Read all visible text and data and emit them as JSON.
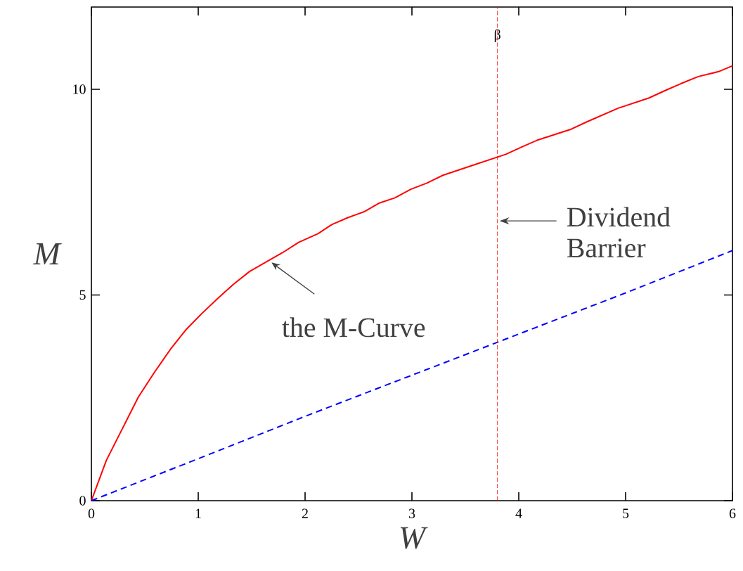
{
  "chart_data": {
    "type": "line",
    "xlabel": "W",
    "ylabel": "M",
    "xlim": [
      0,
      6
    ],
    "ylim": [
      0,
      12
    ],
    "xticks": [
      0,
      1,
      2,
      3,
      4,
      5,
      6
    ],
    "yticks": [
      0,
      5,
      10
    ],
    "series": [
      {
        "color": "#ff0000",
        "line_style": "solid",
        "x": [
          0,
          0.14,
          0.29,
          0.44,
          0.59,
          0.74,
          0.88,
          1.03,
          1.18,
          1.33,
          1.48,
          1.66,
          1.79,
          1.94,
          2.12,
          2.25,
          2.4,
          2.55,
          2.69,
          2.84,
          2.99,
          3.14,
          3.29,
          3.59,
          3.88,
          4.03,
          4.18,
          4.48,
          4.63,
          4.78,
          4.93,
          5.22,
          5.37,
          5.52,
          5.68,
          5.87,
          6
        ],
        "values": [
          0,
          0.98,
          1.75,
          2.52,
          3.12,
          3.68,
          4.14,
          4.54,
          4.91,
          5.26,
          5.57,
          5.84,
          6.03,
          6.28,
          6.49,
          6.71,
          6.88,
          7.02,
          7.23,
          7.36,
          7.57,
          7.72,
          7.91,
          8.17,
          8.42,
          8.6,
          8.77,
          9.02,
          9.2,
          9.37,
          9.54,
          9.79,
          9.97,
          10.14,
          10.31,
          10.43,
          10.57
        ]
      },
      {
        "color": "#0000ff",
        "line_style": "dashed",
        "x": [
          0,
          1,
          2,
          3,
          4,
          5,
          6
        ],
        "values": [
          0,
          1.02,
          2.05,
          3.05,
          4.05,
          5.05,
          6.08
        ]
      }
    ],
    "ref_lines": [
      {
        "axis": "x",
        "value": 3.8,
        "label": "β",
        "color": "#ff0000",
        "line_style": "dashed"
      }
    ],
    "annotations": [
      {
        "text": "the M-Curve",
        "x": 1.66,
        "y": 5.84
      },
      {
        "text": "Dividend Barrier",
        "x": 3.8,
        "y": 6.8
      }
    ],
    "marker": "none"
  }
}
